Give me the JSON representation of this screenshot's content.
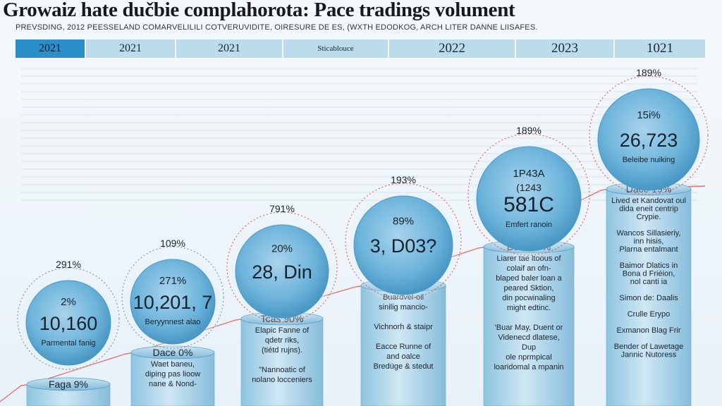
{
  "header": {
    "title": "Growaiz hate dučbie complahorota: Pace tradings volument",
    "subtitle": "PREVSDING, 2012 PEESSELAND COMARVELILILI COTVERUVIDITE, OIRESURE DE ES, (WXTH EDODKOG, ARCH LITER DANNE LIISAFES."
  },
  "year_bar": [
    "2021",
    "2021",
    "2021",
    "Sticablouce",
    "2022",
    "2023",
    "1021"
  ],
  "colors": {
    "accent": "#2a8fc8",
    "bubble": "#5da9d2",
    "cylinder": "#9fcde6",
    "dotted_ring": "#d9534f",
    "trend_line": "#e05a5a",
    "header_bar": "#bcdcec"
  },
  "chart_data": {
    "type": "bar",
    "title": "Growaiz hate dučbie complahorota: Pace tradings volument",
    "categories": [
      "2021",
      "2021",
      "2021",
      "Sticablouce",
      "2022",
      "2023",
      "1021"
    ],
    "columns": [
      {
        "top_pct": "291%",
        "bubble_pct": "2%",
        "value_label": "10,160",
        "bubble_caption": "Parmental fanig",
        "cap_label": "Faga 9%",
        "body": []
      },
      {
        "top_pct": "109%",
        "bubble_pct": "271%",
        "value_label": "10,201, 7",
        "bubble_caption": "Beryynnest alao",
        "cap_label": "Dace 0%",
        "body": [
          "Waet baneu,",
          "diping pas lioow",
          "nane & Nond-"
        ]
      },
      {
        "top_pct": "791%",
        "bubble_pct": "20%",
        "value_label": "28, Din",
        "bubble_caption": "",
        "cap_label": "Tcas 90%",
        "body": [
          "Elapic Fanne of",
          "qdetr riks,",
          "(tiétd rujns).",
          "",
          "\"Nannoatic of",
          "nolano locceniers"
        ]
      },
      {
        "top_pct": "193%",
        "bubble_pct": "89%",
        "value_label": "3, D03?",
        "bubble_caption": "",
        "cap_label": "Bpce 10%",
        "body": [
          "Buardvel-oil",
          "sinilig mancio-",
          "",
          "Vichnorh & staipr",
          "",
          "Eacce Runne of",
          "and oalce",
          "Bredüge & stedut"
        ]
      },
      {
        "top_pct": "189%",
        "bubble_pct": "1P43A",
        "bubble_sub": "(1243",
        "value_label": "581C",
        "bubble_caption": "Emfert ranoin",
        "cap_label": "Daor 19%",
        "body": [
          "Liarer tae ltoous of",
          "colaif an ofn-",
          "blaped baler loan a",
          "peared Sktion,",
          "din pocwinaling",
          "might edtinc.",
          "",
          "'Buar May, Duent or",
          "Videnecd dlatese,",
          "Dup",
          "ole nprmpical",
          "loaridomal a mpanin"
        ]
      },
      {
        "top_pct": "189%",
        "bubble_pct": "15i%",
        "value_label": "26,723",
        "bubble_caption": "Beleibe nuiking",
        "cap_label": "Dace 19%",
        "body": [
          "Lived et Kandovat oul",
          "dida eneit centrip",
          "Crypie.",
          "",
          "Wancos Sillasieriy,",
          "inn hisis,",
          "Plarna entalmant",
          "",
          "Baimor Dlatics in",
          "Bona d Friéion,",
          "nol canti ia",
          "",
          "Simon de: Daalis",
          "",
          "Crulle Erypo",
          "",
          "Exmanon Blag Frir",
          "",
          "Bender of Lawetage",
          "Jannic Nutoress"
        ]
      }
    ]
  }
}
